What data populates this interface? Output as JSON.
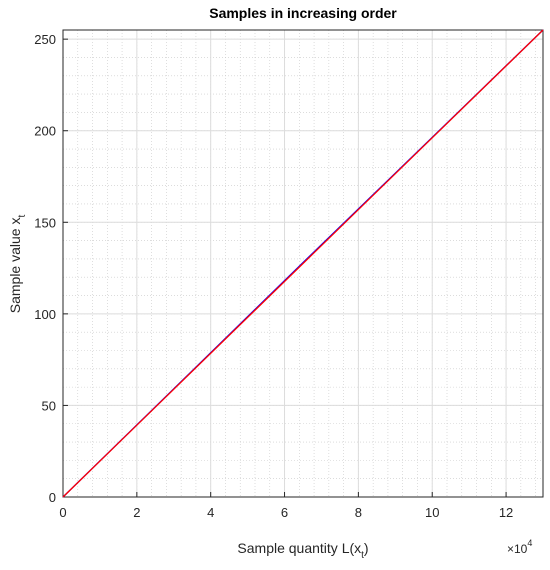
{
  "chart_data": {
    "type": "line",
    "title": "Samples in increasing order",
    "xlabel": {
      "main": "Sample quantity L(x",
      "sub": "t",
      "tail": ")"
    },
    "ylabel": {
      "main": "Sample value x",
      "sub": "t"
    },
    "x_multiplier": {
      "base": "×10",
      "exponent": "4"
    },
    "x": [
      0,
      65000,
      130000
    ],
    "series": [
      {
        "color": "#0000ff",
        "values": [
          0,
          128,
          255
        ]
      },
      {
        "color": "#ff0000",
        "values": [
          0,
          127.5,
          255
        ]
      }
    ],
    "xlim": [
      0,
      130000
    ],
    "ylim": [
      0,
      255
    ],
    "xticks": [
      {
        "value": 0,
        "label": "0"
      },
      {
        "value": 20000,
        "label": "2"
      },
      {
        "value": 40000,
        "label": "4"
      },
      {
        "value": 60000,
        "label": "6"
      },
      {
        "value": 80000,
        "label": "8"
      },
      {
        "value": 100000,
        "label": "10"
      },
      {
        "value": 120000,
        "label": "12"
      }
    ],
    "yticks": [
      0,
      50,
      100,
      150,
      200,
      250
    ],
    "grid": true,
    "minor_grid": true
  }
}
